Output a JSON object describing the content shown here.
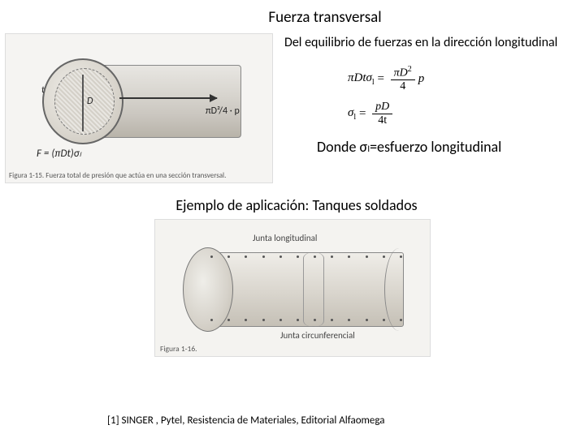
{
  "title": "Fuerza transversal",
  "subtitle": "Del equilibrio de fuerzas en la dirección longitudinal",
  "figure1": {
    "d_label": "D",
    "t_label": "t",
    "p_label": "p",
    "formula_under": "F = (πDt)σₗ",
    "p_formula": "πD²/4 · p",
    "caption": "Figura 1-15. Fuerza total de presión que actúa en una sección transversal."
  },
  "equations": {
    "eq1_lhs": "πDtσ",
    "eq1_sub": "l",
    "eq1_num": "πD",
    "eq1_sup": "2",
    "eq1_den": "4",
    "eq1_rhs": "p",
    "eq2_lhs": "σ",
    "eq2_sub": "l",
    "eq2_num": "pD",
    "eq2_den": "4t"
  },
  "donde_text": "Donde σₗ=esfuerzo longitudinal",
  "ejemplo_text": "Ejemplo de aplicación: Tanques soldados",
  "figure2": {
    "junta_long": "Junta longitudinal",
    "junta_circ": "Junta circunferencial",
    "caption": "Figura 1-16."
  },
  "reference": "[1] SINGER , Pytel, Resistencia de Materiales, Editorial Alfaomega",
  "colors": {
    "bg": "#ffffff",
    "text": "#000000",
    "fig_bg": "#f5f4f2",
    "metal_light": "#efede8",
    "metal_dark": "#c5c0b6"
  }
}
